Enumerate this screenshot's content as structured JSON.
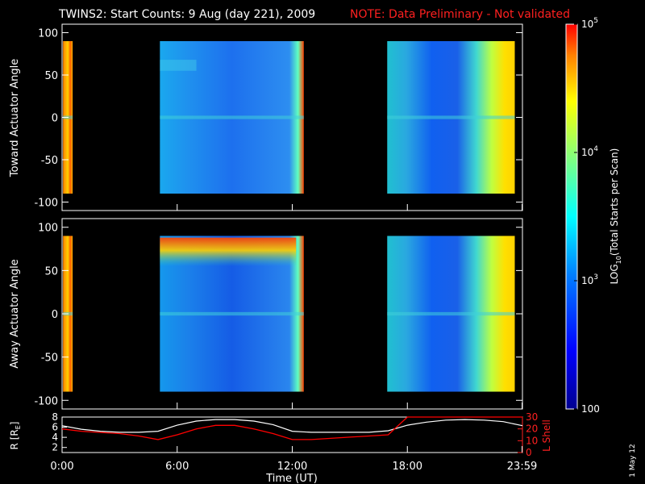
{
  "title": "TWINS2: Start Counts:  9 Aug (day 221), 2009",
  "note": "NOTE: Data Preliminary - Not validated",
  "stamp": "1 May 12",
  "colors": {
    "background": "#000000",
    "axis": "#ffffff",
    "note": "#ff0000",
    "radius": "#ffffff",
    "lshell": "#ff0000"
  },
  "chart_data": [
    {
      "type": "heatmap",
      "ylabel": "Toward Actuator Angle",
      "ylim": [
        -110,
        110
      ],
      "yticks": [
        -100,
        -50,
        0,
        50,
        100
      ],
      "data_angle_range": [
        -90,
        90
      ],
      "x_hours_range": [
        0,
        24
      ],
      "data_blocks_hours": [
        [
          0.05,
          0.55
        ],
        [
          5.1,
          12.6
        ],
        [
          16.95,
          23.6
        ]
      ],
      "zscale": "log"
    },
    {
      "type": "heatmap",
      "ylabel": "Away Actuator Angle",
      "ylim": [
        -110,
        110
      ],
      "yticks": [
        -100,
        -50,
        0,
        50,
        100
      ],
      "data_angle_range": [
        -90,
        90
      ],
      "x_hours_range": [
        0,
        24
      ],
      "data_blocks_hours": [
        [
          0.05,
          0.55
        ],
        [
          5.1,
          12.6
        ],
        [
          16.95,
          23.6
        ]
      ],
      "zscale": "log"
    },
    {
      "type": "line",
      "xlabel": "Time (UT)",
      "xtick_labels": [
        "0:00",
        "6:00",
        "12:00",
        "18:00",
        "23:59"
      ],
      "x_hours": [
        0,
        6,
        12,
        18,
        23.98
      ],
      "ylabel_left": "R [RE]",
      "ylim_left": [
        1,
        8
      ],
      "yticks_left": [
        2,
        4,
        6,
        8
      ],
      "ylabel_right": "L Shell",
      "ylim_right": [
        0,
        30
      ],
      "yticks_right": [
        0,
        10,
        20,
        30
      ],
      "series": [
        {
          "axis": "left",
          "color": "#ffffff",
          "x": [
            0,
            1,
            2,
            3,
            4,
            5,
            6,
            7,
            8,
            9,
            10,
            11,
            12,
            13,
            14,
            15,
            16,
            17,
            18,
            19,
            20,
            21,
            22,
            23,
            24
          ],
          "y": [
            6.3,
            5.6,
            5.2,
            5.0,
            5.0,
            5.2,
            6.4,
            7.2,
            7.5,
            7.5,
            7.2,
            6.5,
            5.2,
            5.0,
            5.0,
            5.0,
            5.0,
            5.3,
            6.4,
            7.0,
            7.4,
            7.5,
            7.4,
            7.1,
            6.3
          ]
        },
        {
          "axis": "right",
          "color": "#ff0000",
          "x": [
            0,
            1,
            2,
            3,
            4,
            5,
            6,
            7,
            8,
            9,
            10,
            11,
            12,
            13,
            14,
            15,
            16,
            17,
            18,
            24
          ],
          "y": [
            20,
            18,
            17,
            16,
            14,
            11,
            15,
            20,
            23,
            23,
            20,
            16,
            11,
            11,
            12,
            13,
            14,
            15,
            30,
            30
          ]
        }
      ]
    }
  ],
  "colorbar": {
    "label": "LOG10(Total Starts per Scan)",
    "label_main": "LOG",
    "label_sub": "10",
    "label_rest": "(Total Starts per Scan)",
    "zlim": [
      100,
      100000
    ],
    "ticks": [
      {
        "value": 100,
        "label": "100"
      },
      {
        "value": 1000,
        "base": "10",
        "exp": "3"
      },
      {
        "value": 10000,
        "base": "10",
        "exp": "4"
      },
      {
        "value": 100000,
        "base": "10",
        "exp": "5"
      }
    ]
  }
}
